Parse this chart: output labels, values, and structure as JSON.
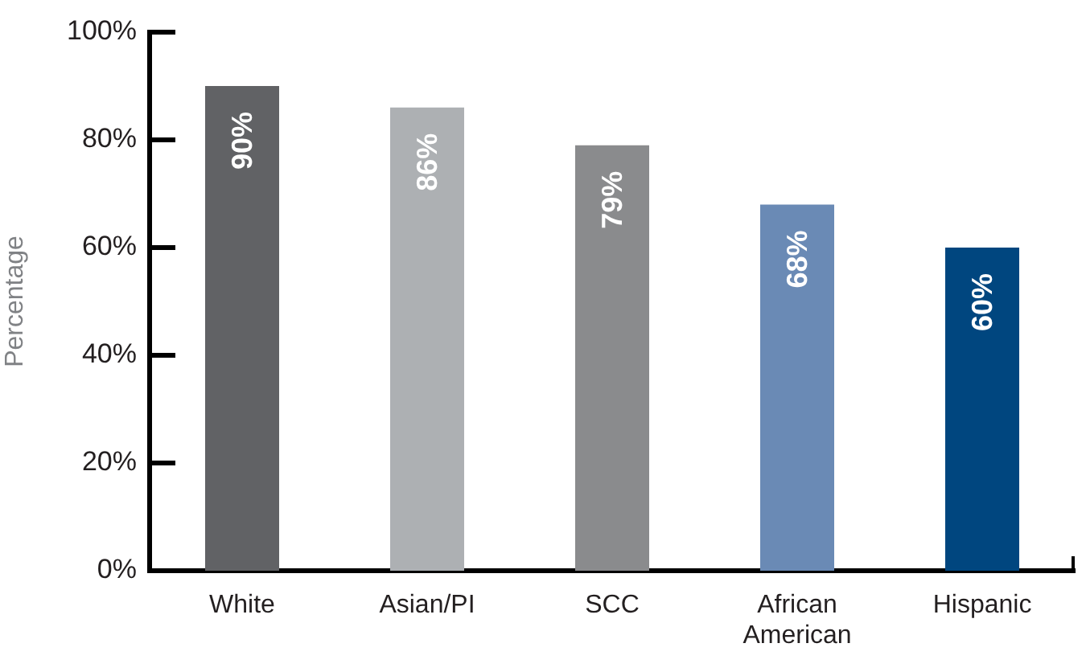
{
  "chart_data": {
    "type": "bar",
    "ylabel": "Percentage",
    "categories": [
      "White",
      "Asian/PI",
      "SCC",
      "African American",
      "Hispanic"
    ],
    "values": [
      90,
      86,
      79,
      68,
      60
    ],
    "colors": [
      "#616265",
      "#adb0b3",
      "#8a8b8d",
      "#6a8ab5",
      "#00467f"
    ],
    "value_labels": [
      "90%",
      "86%",
      "79%",
      "68%",
      "60%"
    ],
    "ylim": [
      0,
      100
    ],
    "yticks": [
      {
        "value": 0,
        "label": "0%"
      },
      {
        "value": 20,
        "label": "20%"
      },
      {
        "value": 40,
        "label": "40%"
      },
      {
        "value": 60,
        "label": "60%"
      },
      {
        "value": 80,
        "label": "80%"
      },
      {
        "value": 100,
        "label": "100%"
      }
    ],
    "grid": false,
    "legend": false
  }
}
